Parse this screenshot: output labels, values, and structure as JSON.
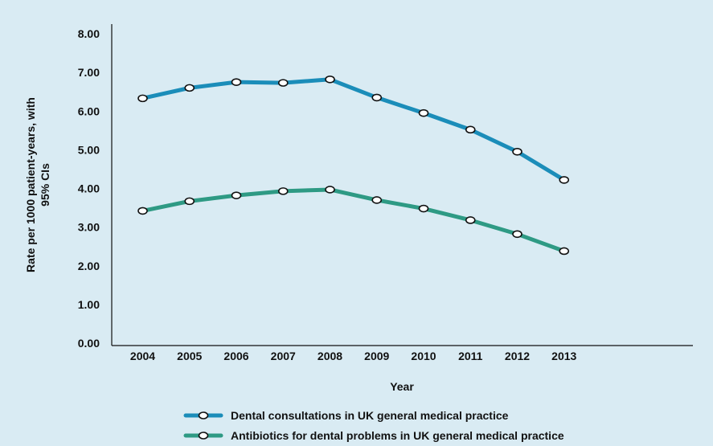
{
  "chart_data": {
    "type": "line",
    "categories": [
      "2004",
      "2005",
      "2006",
      "2007",
      "2008",
      "2009",
      "2010",
      "2011",
      "2012",
      "2013"
    ],
    "series": [
      {
        "name": "Dental consultations in UK general medical practice",
        "values": [
          6.33,
          6.6,
          6.75,
          6.73,
          6.82,
          6.35,
          5.95,
          5.52,
          4.95,
          4.22
        ],
        "color": "#1b8db9"
      },
      {
        "name": "Antibiotics for dental problems in UK general medical practice",
        "values": [
          3.42,
          3.67,
          3.82,
          3.93,
          3.97,
          3.7,
          3.48,
          3.18,
          2.82,
          2.38
        ],
        "color": "#2e9a84"
      }
    ],
    "xlabel": "Year",
    "ylabel_line1": "Rate per 1000 patient-years, with",
    "ylabel_line2": "95% CIs",
    "ylim": [
      0,
      8
    ],
    "yticks": [
      "0.00",
      "1.00",
      "2.00",
      "3.00",
      "4.00",
      "5.00",
      "6.00",
      "7.00",
      "8.00"
    ],
    "grid": false,
    "legend_position": "bottom"
  }
}
